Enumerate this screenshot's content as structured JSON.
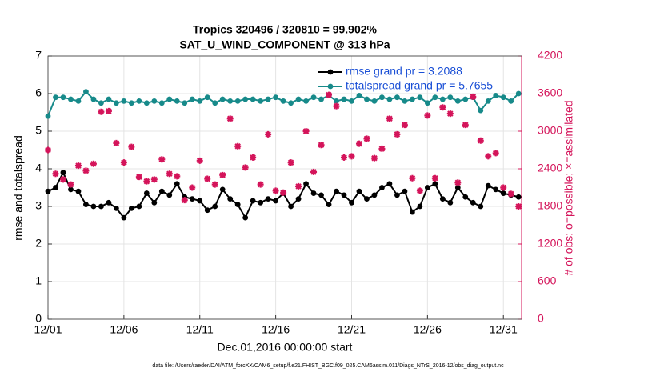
{
  "chart_data": {
    "type": "line",
    "title": "Tropics 320496 / 320810 = 99.902%",
    "subtitle": "SAT_U_WIND_COMPONENT @ 313 hPa",
    "xlabel": "Dec.01,2016 00:00:00 start",
    "ylabel": "rmse and totalspread",
    "y2label": "# of obs: o=possible; ×=assimilated",
    "footnote": "data file: /Users/raeder/DAI/ATM_forcXX/CAM6_setup/f.e21.FHIST_BGC.f09_025.CAM6assim.011/Diags_NTrS_2016-12/obs_diag_output.nc",
    "x": [
      0,
      0.5,
      1,
      1.5,
      2,
      2.5,
      3,
      3.5,
      4,
      4.5,
      5,
      5.5,
      6,
      6.5,
      7,
      7.5,
      8,
      8.5,
      9,
      9.5,
      10,
      10.5,
      11,
      11.5,
      12,
      12.5,
      13,
      13.5,
      14,
      14.5,
      15,
      15.5,
      16,
      16.5,
      17,
      17.5,
      18,
      18.5,
      19,
      19.5,
      20,
      20.5,
      21,
      21.5,
      22,
      22.5,
      23,
      23.5,
      24,
      24.5,
      25,
      25.5,
      26,
      26.5,
      27,
      27.5,
      28,
      28.5,
      29,
      29.5,
      30,
      30.5,
      31
    ],
    "series": [
      {
        "name": "rmse grand pr = 3.2088",
        "color": "#000000",
        "marker": "circle",
        "values": [
          3.4,
          3.5,
          3.9,
          3.45,
          3.4,
          3.05,
          3.0,
          3.0,
          3.1,
          2.95,
          2.7,
          2.95,
          3.0,
          3.35,
          3.1,
          3.4,
          3.3,
          3.6,
          3.25,
          3.2,
          3.15,
          2.9,
          3.0,
          3.45,
          3.2,
          3.05,
          2.7,
          3.15,
          3.1,
          3.2,
          3.15,
          3.35,
          3.0,
          3.2,
          3.6,
          3.35,
          3.3,
          3.05,
          3.4,
          3.3,
          3.1,
          3.4,
          3.2,
          3.3,
          3.5,
          3.6,
          3.3,
          3.4,
          2.85,
          3.0,
          3.5,
          3.6,
          3.2,
          3.1,
          3.5,
          3.25,
          3.1,
          3.0,
          3.55,
          3.45,
          3.35,
          3.3,
          3.25
        ]
      },
      {
        "name": "totalspread grand pr = 5.7655",
        "color": "#178a8a",
        "marker": "circle",
        "values": [
          5.4,
          5.9,
          5.9,
          5.85,
          5.8,
          6.05,
          5.85,
          5.75,
          5.85,
          5.75,
          5.8,
          5.75,
          5.8,
          5.75,
          5.8,
          5.75,
          5.85,
          5.8,
          5.75,
          5.85,
          5.8,
          5.9,
          5.75,
          5.85,
          5.8,
          5.8,
          5.85,
          5.85,
          5.8,
          5.85,
          5.9,
          5.8,
          5.75,
          5.85,
          5.8,
          5.9,
          5.85,
          5.95,
          5.8,
          5.85,
          5.8,
          5.95,
          5.85,
          5.8,
          5.9,
          5.85,
          5.9,
          5.8,
          5.85,
          5.9,
          5.75,
          5.9,
          5.85,
          5.9,
          5.8,
          5.85,
          5.9,
          5.55,
          5.8,
          5.95,
          5.9,
          5.8,
          6.0
        ]
      },
      {
        "color": "#d4145a",
        "marker": "star",
        "axis": "y2",
        "line": false,
        "values": [
          2700,
          2320,
          2230,
          2150,
          2450,
          2370,
          2480,
          3310,
          3320,
          2810,
          2500,
          2750,
          2270,
          2200,
          2230,
          2550,
          2320,
          2280,
          1900,
          2100,
          2530,
          2240,
          2150,
          2300,
          3200,
          2760,
          2420,
          2580,
          2150,
          2950,
          2050,
          2020,
          2500,
          2120,
          3000,
          2350,
          2780,
          3580,
          3400,
          2580,
          2600,
          2800,
          2880,
          2570,
          2720,
          3200,
          2950,
          3100,
          2250,
          2050,
          3250,
          2250,
          3380,
          3280,
          2180,
          3100,
          3550,
          2850,
          2600,
          2650,
          2100,
          2000,
          1800
        ]
      }
    ],
    "xlim": [
      0,
      31.2
    ],
    "xticks": [
      {
        "value": 0,
        "label": "12/01"
      },
      {
        "value": 5,
        "label": "12/06"
      },
      {
        "value": 10,
        "label": "12/11"
      },
      {
        "value": 15,
        "label": "12/16"
      },
      {
        "value": 20,
        "label": "12/21"
      },
      {
        "value": 25,
        "label": "12/26"
      },
      {
        "value": 30,
        "label": "12/31"
      }
    ],
    "ylim": [
      0,
      7
    ],
    "yticks": [
      0,
      1,
      2,
      3,
      4,
      5,
      6,
      7
    ],
    "y2lim": [
      0,
      4200
    ],
    "y2ticks": [
      0,
      600,
      1200,
      1800,
      2400,
      3000,
      3600,
      4200
    ],
    "grid": true,
    "legend": "upper right"
  }
}
